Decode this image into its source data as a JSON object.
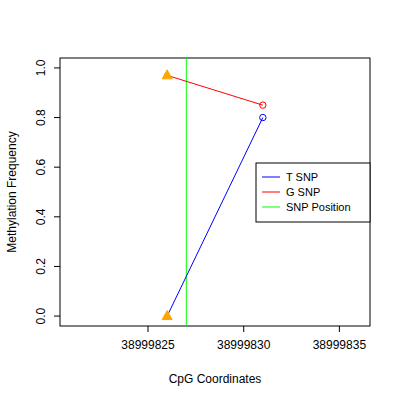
{
  "chart_data": {
    "type": "line",
    "x_label": "CpG Coordinates",
    "y_label": "Methylation Frequency",
    "x": [
      38999826,
      38999831
    ],
    "series": [
      {
        "name": "T SNP",
        "color": "#0000ff",
        "marker": "circle",
        "values": [
          0.0,
          0.8
        ]
      },
      {
        "name": "G SNP",
        "color": "#ff0000",
        "marker": "circle",
        "values": [
          0.97,
          0.85
        ]
      }
    ],
    "reference_lines": [
      {
        "name": "SNP Position",
        "color": "#00ff00",
        "x": 38999827
      }
    ],
    "xlim": [
      38999820.4,
      38999836.6
    ],
    "xticks": [
      38999825,
      38999830,
      38999835
    ],
    "ylim": [
      -0.04,
      1.04
    ],
    "yticks": [
      {
        "value": 0,
        "label": "0.0"
      },
      0.2,
      0.4,
      0.6,
      0.8,
      {
        "value": 1,
        "label": "1.0"
      }
    ],
    "legend": "right",
    "grid": false
  }
}
